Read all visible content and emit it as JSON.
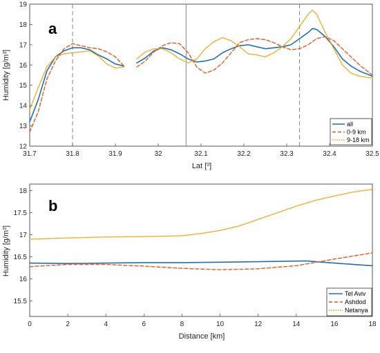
{
  "chart_data": [
    {
      "panel": "a",
      "type": "line",
      "xlabel": "Lat [",
      "xlabel_sup": "0",
      "xlabel_end": "]",
      "ylabel": "Humidity [g/m",
      "ylabel_sup": "3",
      "ylabel_end": "]",
      "xlim": [
        31.7,
        32.5
      ],
      "ylim": [
        12,
        19
      ],
      "xticks": [
        31.7,
        31.8,
        31.9,
        32,
        32.1,
        32.2,
        32.3,
        32.4,
        32.5
      ],
      "xtick_labels": [
        "31.7",
        "31.8",
        "31.9",
        "32",
        "32.1",
        "32.2",
        "32.3",
        "32.4",
        "32.5"
      ],
      "yticks": [
        12,
        13,
        14,
        15,
        16,
        17,
        18,
        19
      ],
      "ytick_labels": [
        "12",
        "13",
        "14",
        "15",
        "16",
        "17",
        "18",
        "19"
      ],
      "vlines": [
        {
          "x": 31.8,
          "style": "dashed"
        },
        {
          "x": 32.065,
          "style": "solid"
        },
        {
          "x": 32.33,
          "style": "dashed"
        }
      ],
      "legend_position": "bottom-right",
      "series": [
        {
          "name": "all",
          "color": "#1f6fb4",
          "dash": "solid",
          "segments": [
            {
              "x": [
                31.7,
                31.72,
                31.74,
                31.76,
                31.78,
                31.8,
                31.82,
                31.84,
                31.86,
                31.88,
                31.9,
                31.92
              ],
              "y": [
                13.2,
                14.3,
                15.7,
                16.4,
                16.7,
                16.85,
                16.85,
                16.75,
                16.5,
                16.3,
                16.05,
                15.95
              ]
            },
            {
              "x": [
                31.95,
                31.97,
                31.99,
                32.01,
                32.03,
                32.05,
                32.07,
                32.09,
                32.11,
                32.13,
                32.15,
                32.17,
                32.19,
                32.21,
                32.23,
                32.25,
                32.27,
                32.29,
                32.31,
                32.33,
                32.35,
                32.36,
                32.37,
                32.39,
                32.41,
                32.43,
                32.45,
                32.47,
                32.5
              ],
              "y": [
                16.1,
                16.35,
                16.7,
                16.85,
                16.75,
                16.55,
                16.3,
                16.15,
                16.2,
                16.3,
                16.6,
                16.8,
                16.95,
                17.0,
                16.9,
                16.8,
                16.85,
                16.9,
                17.0,
                17.3,
                17.6,
                17.8,
                17.75,
                17.4,
                16.9,
                16.3,
                15.95,
                15.7,
                15.45
              ]
            }
          ]
        },
        {
          "name": "0-9 km",
          "color": "#e8571c",
          "dash": "dashed",
          "segments": [
            {
              "x": [
                31.7,
                31.72,
                31.74,
                31.76,
                31.78,
                31.8,
                31.82,
                31.84,
                31.86,
                31.88,
                31.9,
                31.92
              ],
              "y": [
                12.7,
                13.7,
                15.3,
                16.2,
                16.8,
                17.05,
                16.95,
                16.85,
                16.8,
                16.65,
                16.4,
                15.95
              ]
            },
            {
              "x": [
                31.95,
                31.97,
                31.99,
                32.01,
                32.03,
                32.05,
                32.07,
                32.09,
                32.11,
                32.13,
                32.15,
                32.17,
                32.19,
                32.21,
                32.23,
                32.25,
                32.27,
                32.29,
                32.31,
                32.33,
                32.35,
                32.37,
                32.39,
                32.41,
                32.43,
                32.45,
                32.47,
                32.5
              ],
              "y": [
                15.9,
                16.2,
                16.65,
                16.95,
                17.1,
                17.05,
                16.6,
                15.9,
                15.6,
                15.75,
                16.1,
                16.6,
                17.1,
                17.25,
                17.3,
                17.25,
                17.1,
                16.9,
                16.75,
                16.8,
                17.0,
                17.3,
                17.4,
                17.2,
                16.8,
                16.4,
                16.0,
                15.5
              ]
            }
          ]
        },
        {
          "name": "9-18 km",
          "color": "#f0a30a",
          "dash": "dotted",
          "segments": [
            {
              "x": [
                31.7,
                31.72,
                31.74,
                31.76,
                31.78,
                31.8,
                31.82,
                31.84,
                31.86,
                31.88,
                31.9,
                31.92
              ],
              "y": [
                13.8,
                14.9,
                15.9,
                16.4,
                16.55,
                16.6,
                16.65,
                16.7,
                16.45,
                16.05,
                15.85,
                15.9
              ]
            },
            {
              "x": [
                31.95,
                31.97,
                31.99,
                32.01,
                32.03,
                32.05,
                32.07,
                32.09,
                32.11,
                32.13,
                32.15,
                32.17,
                32.19,
                32.21,
                32.23,
                32.25,
                32.27,
                32.29,
                32.31,
                32.33,
                32.35,
                32.36,
                32.37,
                32.39,
                32.41,
                32.43,
                32.45,
                32.47,
                32.5
              ],
              "y": [
                16.3,
                16.65,
                16.8,
                16.8,
                16.6,
                16.3,
                16.1,
                16.3,
                16.8,
                17.15,
                17.35,
                17.2,
                16.9,
                16.55,
                16.5,
                16.4,
                16.6,
                16.9,
                17.3,
                17.9,
                18.5,
                18.7,
                18.5,
                17.6,
                16.8,
                16.0,
                15.6,
                15.45,
                15.35
              ]
            }
          ]
        }
      ]
    },
    {
      "panel": "b",
      "type": "line",
      "xlabel": "Distance [km]",
      "xlabel_sup": "",
      "xlabel_end": "",
      "ylabel": "Humidity [g/m",
      "ylabel_sup": "3",
      "ylabel_end": "]",
      "xlim": [
        0,
        18
      ],
      "ylim": [
        15.15,
        18.15
      ],
      "xticks": [
        0,
        2,
        4,
        6,
        8,
        10,
        12,
        14,
        16,
        18
      ],
      "xtick_labels": [
        "0",
        "2",
        "4",
        "6",
        "8",
        "10",
        "12",
        "14",
        "16",
        "18"
      ],
      "yticks": [
        15.5,
        16,
        16.5,
        17,
        17.5,
        18
      ],
      "ytick_labels": [
        "15.5",
        "16",
        "16.5",
        "17",
        "17.5",
        "18"
      ],
      "vlines": [],
      "legend_position": "bottom-right",
      "series": [
        {
          "name": "Tel Aviv",
          "color": "#1f6fb4",
          "dash": "solid",
          "segments": [
            {
              "x": [
                0,
                2,
                4,
                6,
                8,
                10,
                12,
                14.5,
                16,
                18
              ],
              "y": [
                16.36,
                16.35,
                16.36,
                16.37,
                16.37,
                16.38,
                16.39,
                16.41,
                16.36,
                16.3
              ]
            }
          ]
        },
        {
          "name": "Ashdod",
          "color": "#e8571c",
          "dash": "dashed",
          "segments": [
            {
              "x": [
                0,
                2,
                4,
                6,
                8,
                10,
                12,
                14,
                16,
                18
              ],
              "y": [
                16.28,
                16.33,
                16.33,
                16.29,
                16.24,
                16.21,
                16.23,
                16.3,
                16.45,
                16.59
              ]
            }
          ]
        },
        {
          "name": "Netanya",
          "color": "#f0a30a",
          "dash": "dotted",
          "segments": [
            {
              "x": [
                0,
                2,
                4,
                6,
                8,
                9,
                10,
                11,
                12,
                13,
                14,
                15,
                16,
                17,
                18
              ],
              "y": [
                16.9,
                16.93,
                16.95,
                16.96,
                16.98,
                17.03,
                17.1,
                17.2,
                17.35,
                17.5,
                17.65,
                17.78,
                17.88,
                17.97,
                18.03
              ]
            }
          ]
        }
      ]
    }
  ]
}
